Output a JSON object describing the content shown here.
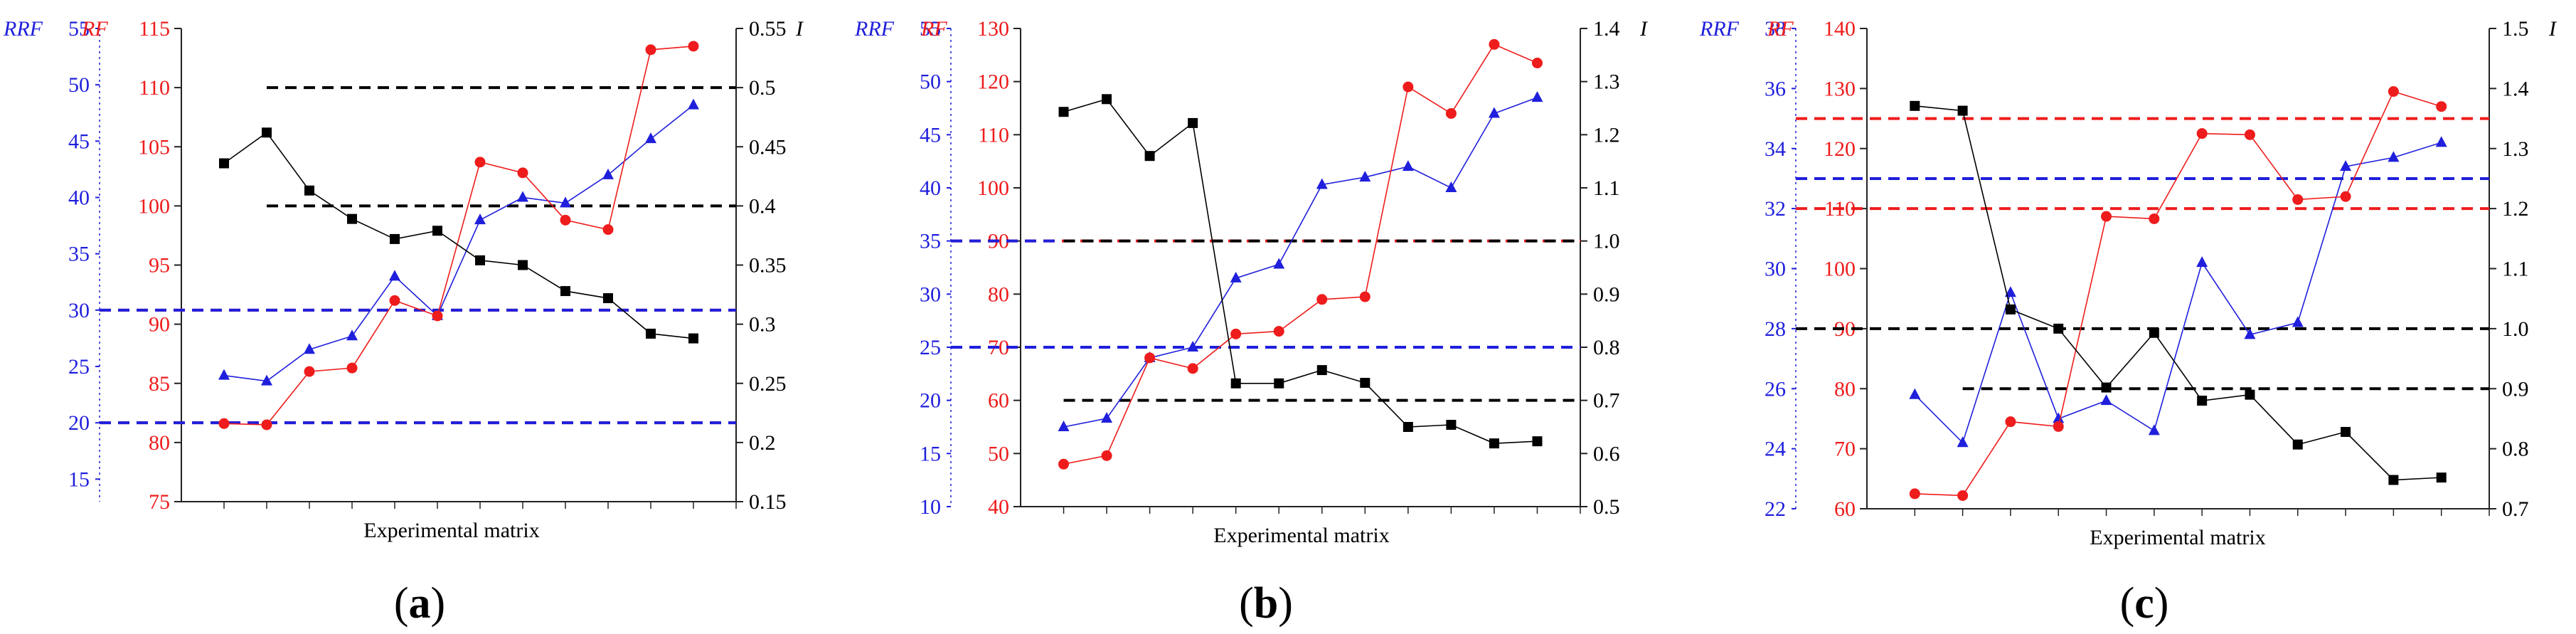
{
  "colors": {
    "rrf": "#1f1fdc",
    "rf": "#ee1c1c",
    "i": "#000000",
    "axis": "#222222"
  },
  "chart_data": [
    {
      "panel_label": "a",
      "type": "line",
      "xlabel": "Experimental matrix",
      "axes": {
        "rrf": {
          "label": "RRF",
          "range": [
            13,
            55
          ],
          "ticks": [
            15,
            20,
            25,
            30,
            35,
            40,
            45,
            50,
            55
          ]
        },
        "rf": {
          "label": "RF",
          "range": [
            75,
            115
          ],
          "ticks": [
            75,
            80,
            85,
            90,
            95,
            100,
            105,
            110,
            115
          ]
        },
        "i": {
          "label": "I",
          "range": [
            0.15,
            0.55
          ],
          "ticks": [
            0.15,
            0.2,
            0.25,
            0.3,
            0.35,
            0.4,
            0.45,
            0.5,
            0.55
          ]
        }
      },
      "x": [
        1,
        2,
        3,
        4,
        5,
        6,
        7,
        8,
        9,
        10,
        11,
        12,
        13
      ],
      "series": [
        {
          "name": "RRF",
          "axis": "rrf",
          "marker": "triangle",
          "values": [
            24.2,
            23.7,
            26.5,
            27.7,
            33.0,
            29.5,
            38.0,
            40.0,
            39.5,
            42.0,
            45.2,
            48.2,
            null
          ]
        },
        {
          "name": "RF",
          "axis": "rf",
          "marker": "circle",
          "values": [
            81.6,
            81.5,
            86.0,
            86.3,
            92.0,
            90.7,
            103.7,
            102.8,
            98.8,
            98.0,
            113.2,
            113.5,
            null
          ]
        },
        {
          "name": "I",
          "axis": "i",
          "marker": "square",
          "values": [
            0.436,
            0.462,
            0.413,
            0.389,
            0.372,
            0.379,
            0.354,
            0.35,
            0.328,
            0.322,
            0.292,
            0.288,
            null
          ]
        }
      ],
      "reference_lines": [
        {
          "axis": "i",
          "value": 0.5,
          "style": "dashed",
          "color": "#000000",
          "x_from": 2,
          "x_to": 13
        },
        {
          "axis": "i",
          "value": 0.4,
          "style": "dashed",
          "color": "#000000",
          "x_from": 2,
          "x_to": 13
        },
        {
          "axis": "rrf",
          "value": 30,
          "style": "dashed",
          "color": "#ee1c1c",
          "x_from": 0,
          "x_to": 13
        },
        {
          "axis": "rrf",
          "value": 30,
          "style": "dashed",
          "color": "#1f1fdc",
          "x_from": 0,
          "x_to": 13
        },
        {
          "axis": "rrf",
          "value": 20,
          "style": "dashed",
          "color": "#ee1c1c",
          "x_from": 0,
          "x_to": 13
        },
        {
          "axis": "rrf",
          "value": 20,
          "style": "dashed",
          "color": "#1f1fdc",
          "x_from": 0,
          "x_to": 13
        }
      ]
    },
    {
      "panel_label": "b",
      "type": "line",
      "xlabel": "Experimental matrix",
      "axes": {
        "rrf": {
          "label": "RRF",
          "range": [
            10,
            55
          ],
          "ticks": [
            10,
            15,
            20,
            25,
            30,
            35,
            40,
            45,
            50,
            55
          ]
        },
        "rf": {
          "label": "RF",
          "range": [
            40,
            130
          ],
          "ticks": [
            40,
            50,
            60,
            70,
            80,
            90,
            100,
            110,
            120,
            130
          ]
        },
        "i": {
          "label": "I",
          "range": [
            0.5,
            1.4
          ],
          "ticks": [
            0.5,
            0.6,
            0.7,
            0.8,
            0.9,
            1.0,
            1.1,
            1.2,
            1.3,
            1.4
          ]
        }
      },
      "x": [
        1,
        2,
        3,
        4,
        5,
        6,
        7,
        8,
        9,
        10,
        11,
        12,
        13
      ],
      "series": [
        {
          "name": "RRF",
          "axis": "rrf",
          "marker": "triangle",
          "values": [
            17.5,
            18.3,
            24.0,
            25.0,
            31.5,
            32.8,
            40.3,
            41.0,
            42.0,
            40.0,
            47.0,
            48.5,
            null
          ]
        },
        {
          "name": "RF",
          "axis": "rf",
          "marker": "circle",
          "values": [
            48.0,
            49.6,
            68.0,
            66.0,
            72.5,
            73.0,
            79.0,
            79.5,
            119.0,
            114.0,
            127.0,
            123.5,
            null
          ]
        },
        {
          "name": "I",
          "axis": "i",
          "marker": "square",
          "values": [
            1.243,
            1.267,
            1.16,
            1.222,
            0.732,
            0.732,
            0.757,
            0.733,
            0.65,
            0.654,
            0.619,
            0.623,
            null
          ]
        }
      ],
      "reference_lines": [
        {
          "axis": "rrf",
          "value": 35,
          "style": "dashed",
          "color": "#ee1c1c",
          "x_from": 0,
          "x_to": 13
        },
        {
          "axis": "rrf",
          "value": 35,
          "style": "dashed",
          "color": "#1f1fdc",
          "x_from": 0,
          "x_to": 0.9
        },
        {
          "axis": "i",
          "value": 1.0,
          "style": "dashed",
          "color": "#000000",
          "x_from": 1,
          "x_to": 13
        },
        {
          "axis": "rrf",
          "value": 25,
          "style": "dashed",
          "color": "#ee1c1c",
          "x_from": 0,
          "x_to": 13
        },
        {
          "axis": "rrf",
          "value": 25,
          "style": "dashed",
          "color": "#1f1fdc",
          "x_from": 0,
          "x_to": 13
        },
        {
          "axis": "i",
          "value": 0.7,
          "style": "dashed",
          "color": "#000000",
          "x_from": 1,
          "x_to": 13
        }
      ]
    },
    {
      "panel_label": "c",
      "type": "line",
      "xlabel": "Experimental matrix",
      "axes": {
        "rrf": {
          "label": "RRF",
          "range": [
            22,
            38
          ],
          "ticks": [
            22,
            24,
            26,
            28,
            30,
            32,
            34,
            36,
            38
          ]
        },
        "rf": {
          "label": "RF",
          "range": [
            60,
            140
          ],
          "ticks": [
            60,
            70,
            80,
            90,
            100,
            110,
            120,
            130,
            140
          ]
        },
        "i": {
          "label": "I",
          "range": [
            0.7,
            1.5
          ],
          "ticks": [
            0.7,
            0.8,
            0.9,
            1.0,
            1.1,
            1.2,
            1.3,
            1.4,
            1.5
          ]
        }
      },
      "x": [
        1,
        2,
        3,
        4,
        5,
        6,
        7,
        8,
        9,
        10,
        11,
        12,
        13
      ],
      "series": [
        {
          "name": "RRF",
          "axis": "rrf",
          "marker": "triangle",
          "values": [
            25.8,
            24.2,
            29.2,
            25.0,
            25.6,
            24.6,
            30.2,
            27.8,
            28.2,
            33.4,
            33.7,
            34.2,
            null
          ]
        },
        {
          "name": "RF",
          "axis": "rf",
          "marker": "circle",
          "values": [
            62.5,
            62.2,
            74.5,
            73.7,
            108.7,
            108.3,
            122.5,
            122.3,
            111.5,
            112.0,
            129.5,
            127.0,
            null
          ]
        },
        {
          "name": "I",
          "axis": "i",
          "marker": "square",
          "values": [
            1.371,
            1.363,
            1.032,
            1.0,
            0.902,
            0.993,
            0.88,
            0.89,
            0.807,
            0.828,
            0.748,
            0.752,
            null
          ]
        }
      ],
      "reference_lines": [
        {
          "axis": "rf",
          "value": 125,
          "style": "dashed",
          "color": "#ee1c1c",
          "x_from": 0,
          "x_to": 13
        },
        {
          "axis": "rrf",
          "value": 33,
          "style": "dashed",
          "color": "#1f1fdc",
          "x_from": 0,
          "x_to": 13
        },
        {
          "axis": "rf",
          "value": 110,
          "style": "dashed",
          "color": "#ee1c1c",
          "x_from": 0,
          "x_to": 13
        },
        {
          "axis": "i",
          "value": 1.0,
          "style": "dashed",
          "color": "#000000",
          "x_from": 0,
          "x_to": 13
        },
        {
          "axis": "i",
          "value": 0.9,
          "style": "dashed",
          "color": "#000000",
          "x_from": 2,
          "x_to": 13
        }
      ]
    }
  ]
}
